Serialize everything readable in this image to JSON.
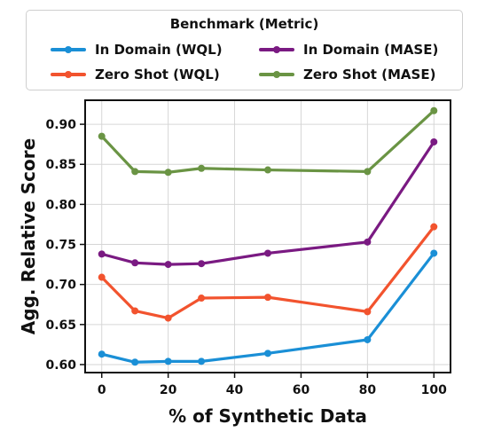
{
  "chart_data": {
    "type": "line",
    "title": "",
    "xlabel": "% of Synthetic Data",
    "ylabel": "Agg. Relative Score",
    "xlim": [
      -5,
      105
    ],
    "ylim": [
      0.59,
      0.93
    ],
    "xticks": [
      0,
      20,
      40,
      60,
      80,
      100
    ],
    "yticks": [
      0.6,
      0.65,
      0.7,
      0.75,
      0.8,
      0.85,
      0.9
    ],
    "x": [
      0,
      10,
      20,
      30,
      50,
      80,
      100
    ],
    "grid": true,
    "legend": {
      "title": "Benchmark (Metric)",
      "placement": "top, above plot, 2 columns"
    },
    "series": [
      {
        "name": "In Domain (WQL)",
        "color": "#1a8fd6",
        "values": [
          0.613,
          0.603,
          0.604,
          0.604,
          0.614,
          0.631,
          0.739
        ]
      },
      {
        "name": "In Domain (MASE)",
        "color": "#7a1a82",
        "values": [
          0.738,
          0.727,
          0.725,
          0.726,
          0.739,
          0.753,
          0.878
        ]
      },
      {
        "name": "Zero Shot (WQL)",
        "color": "#f2532e",
        "values": [
          0.709,
          0.667,
          0.658,
          0.683,
          0.684,
          0.666,
          0.772
        ]
      },
      {
        "name": "Zero Shot (MASE)",
        "color": "#6a9444",
        "values": [
          0.885,
          0.841,
          0.84,
          0.845,
          0.843,
          0.841,
          0.917
        ]
      }
    ]
  }
}
